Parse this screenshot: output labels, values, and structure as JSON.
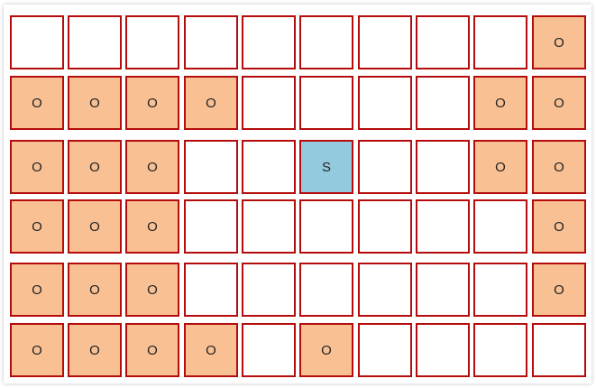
{
  "colors": {
    "obstacle": "#f9c193",
    "start": "#94cadd",
    "empty": "#ffffff",
    "border": "#b50d0d"
  },
  "grid": [
    [
      "",
      "",
      "",
      "",
      "",
      "",
      "",
      "",
      "",
      "O"
    ],
    [
      "O",
      "O",
      "O",
      "O",
      "",
      "",
      "",
      "",
      "O",
      "O"
    ],
    [
      "O",
      "O",
      "O",
      "",
      "",
      "S",
      "",
      "",
      "O",
      "O"
    ],
    [
      "O",
      "O",
      "O",
      "",
      "",
      "",
      "",
      "",
      "",
      "O"
    ],
    [
      "O",
      "O",
      "O",
      "",
      "",
      "",
      "",
      "",
      "",
      "O"
    ],
    [
      "O",
      "O",
      "O",
      "O",
      "",
      "O",
      "",
      "",
      "",
      ""
    ]
  ]
}
